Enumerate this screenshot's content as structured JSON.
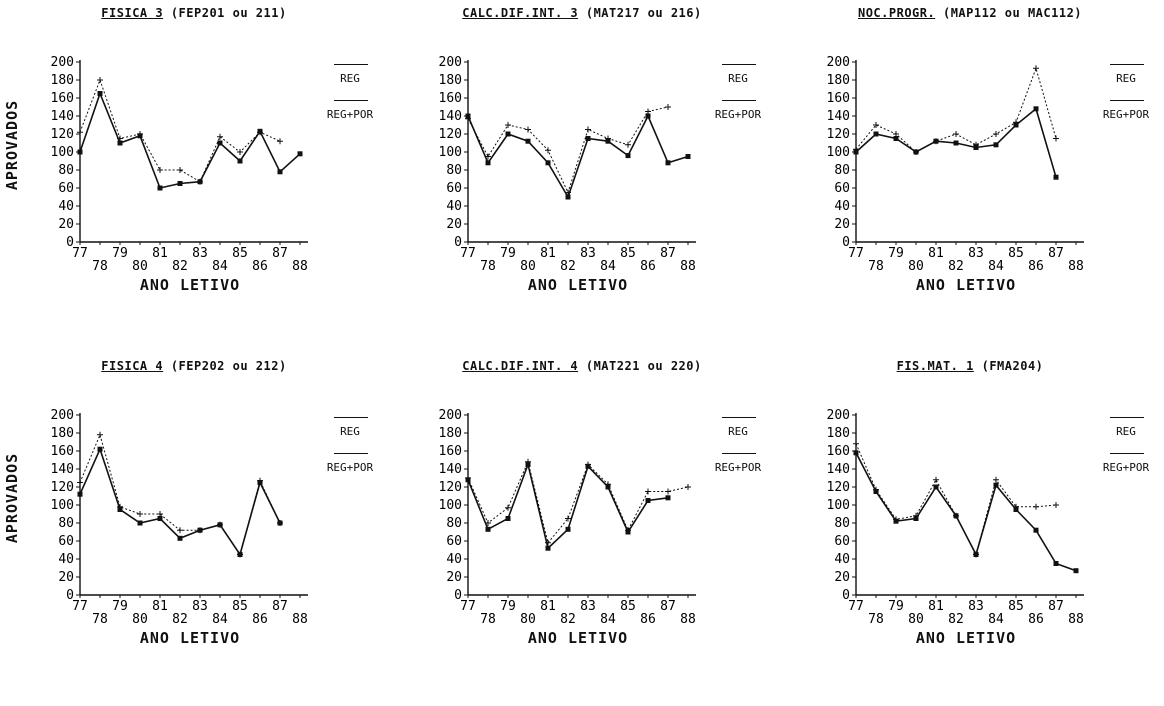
{
  "common": {
    "ylabel": "APROVADOS",
    "xlabel": "ANO LETIVO",
    "legend": [
      "REG",
      "REG+POR"
    ],
    "x_ticks_upper": [
      "77",
      "79",
      "81",
      "83",
      "85",
      "87"
    ],
    "x_ticks_lower": [
      "78",
      "80",
      "82",
      "84",
      "86",
      "88"
    ],
    "y_ticks": [
      "0",
      "20",
      "40",
      "60",
      "80",
      "100",
      "120",
      "140",
      "160",
      "180",
      "200"
    ]
  },
  "chart_data": [
    {
      "type": "line",
      "title_main": "FISICA 3",
      "title_rest": "(FEP201 ou 211)",
      "xlabel": "ANO LETIVO",
      "ylabel": "APROVADOS",
      "ylim": [
        0,
        200
      ],
      "x": [
        77,
        78,
        79,
        80,
        81,
        82,
        83,
        84,
        85,
        86,
        87,
        88
      ],
      "legend_position": "right",
      "series": [
        {
          "name": "REG",
          "values": [
            100,
            165,
            110,
            118,
            60,
            65,
            67,
            110,
            90,
            123,
            78,
            98
          ]
        },
        {
          "name": "REG+POR",
          "values": [
            122,
            180,
            115,
            120,
            80,
            80,
            67,
            117,
            100,
            122,
            112,
            null
          ]
        }
      ]
    },
    {
      "type": "line",
      "title_main": "CALC.DIF.INT. 3",
      "title_rest": "(MAT217 ou 216)",
      "xlabel": "ANO LETIVO",
      "ylabel": "",
      "ylim": [
        0,
        200
      ],
      "x": [
        77,
        78,
        79,
        80,
        81,
        82,
        83,
        84,
        85,
        86,
        87,
        88
      ],
      "legend_position": "right",
      "series": [
        {
          "name": "REG",
          "values": [
            140,
            88,
            120,
            112,
            88,
            50,
            115,
            112,
            96,
            140,
            88,
            95
          ]
        },
        {
          "name": "REG+POR",
          "values": [
            137,
            95,
            130,
            125,
            102,
            55,
            125,
            115,
            108,
            145,
            150,
            null
          ]
        }
      ]
    },
    {
      "type": "line",
      "title_main": "NOC.PROGR.",
      "title_rest": "(MAP112 ou MAC112)",
      "xlabel": "ANO LETIVO",
      "ylabel": "",
      "ylim": [
        0,
        200
      ],
      "x": [
        77,
        78,
        79,
        80,
        81,
        82,
        83,
        84,
        85,
        86,
        87
      ],
      "legend_position": "right",
      "series": [
        {
          "name": "REG",
          "values": [
            100,
            120,
            115,
            100,
            112,
            110,
            105,
            108,
            130,
            148,
            72
          ]
        },
        {
          "name": "REG+POR",
          "values": [
            103,
            130,
            120,
            100,
            112,
            120,
            108,
            120,
            133,
            193,
            115
          ]
        }
      ]
    },
    {
      "type": "line",
      "title_main": "FISICA 4",
      "title_rest": "(FEP202 ou 212)",
      "xlabel": "ANO LETIVO",
      "ylabel": "APROVADOS",
      "ylim": [
        0,
        200
      ],
      "x": [
        77,
        78,
        79,
        80,
        81,
        82,
        83,
        84,
        85,
        86,
        87
      ],
      "legend_position": "right",
      "series": [
        {
          "name": "REG",
          "values": [
            112,
            162,
            95,
            80,
            85,
            63,
            72,
            78,
            45,
            125,
            80
          ]
        },
        {
          "name": "REG+POR",
          "values": [
            125,
            178,
            98,
            90,
            90,
            72,
            72,
            78,
            45,
            127,
            80
          ]
        }
      ]
    },
    {
      "type": "line",
      "title_main": "CALC.DIF.INT. 4",
      "title_rest": "(MAT221 ou 220)",
      "xlabel": "ANO LETIVO",
      "ylabel": "",
      "ylim": [
        0,
        200
      ],
      "x": [
        77,
        78,
        79,
        80,
        81,
        82,
        83,
        84,
        85,
        86,
        87,
        88
      ],
      "legend_position": "right",
      "series": [
        {
          "name": "REG",
          "values": [
            128,
            73,
            85,
            145,
            52,
            73,
            143,
            120,
            70,
            105,
            108,
            null
          ]
        },
        {
          "name": "REG+POR",
          "values": [
            130,
            80,
            97,
            148,
            58,
            85,
            145,
            123,
            72,
            115,
            115,
            120
          ]
        }
      ]
    },
    {
      "type": "line",
      "title_main": "FIS.MAT. 1",
      "title_rest": "(FMA204)",
      "xlabel": "ANO LETIVO",
      "ylabel": "",
      "ylim": [
        0,
        200
      ],
      "x": [
        77,
        78,
        79,
        80,
        81,
        82,
        83,
        84,
        85,
        86,
        87,
        88
      ],
      "legend_position": "right",
      "series": [
        {
          "name": "REG",
          "values": [
            158,
            115,
            82,
            85,
            120,
            88,
            45,
            122,
            95,
            72,
            35,
            27
          ]
        },
        {
          "name": "REG+POR",
          "values": [
            168,
            117,
            84,
            88,
            128,
            88,
            45,
            128,
            98,
            98,
            100,
            null
          ]
        }
      ]
    }
  ]
}
